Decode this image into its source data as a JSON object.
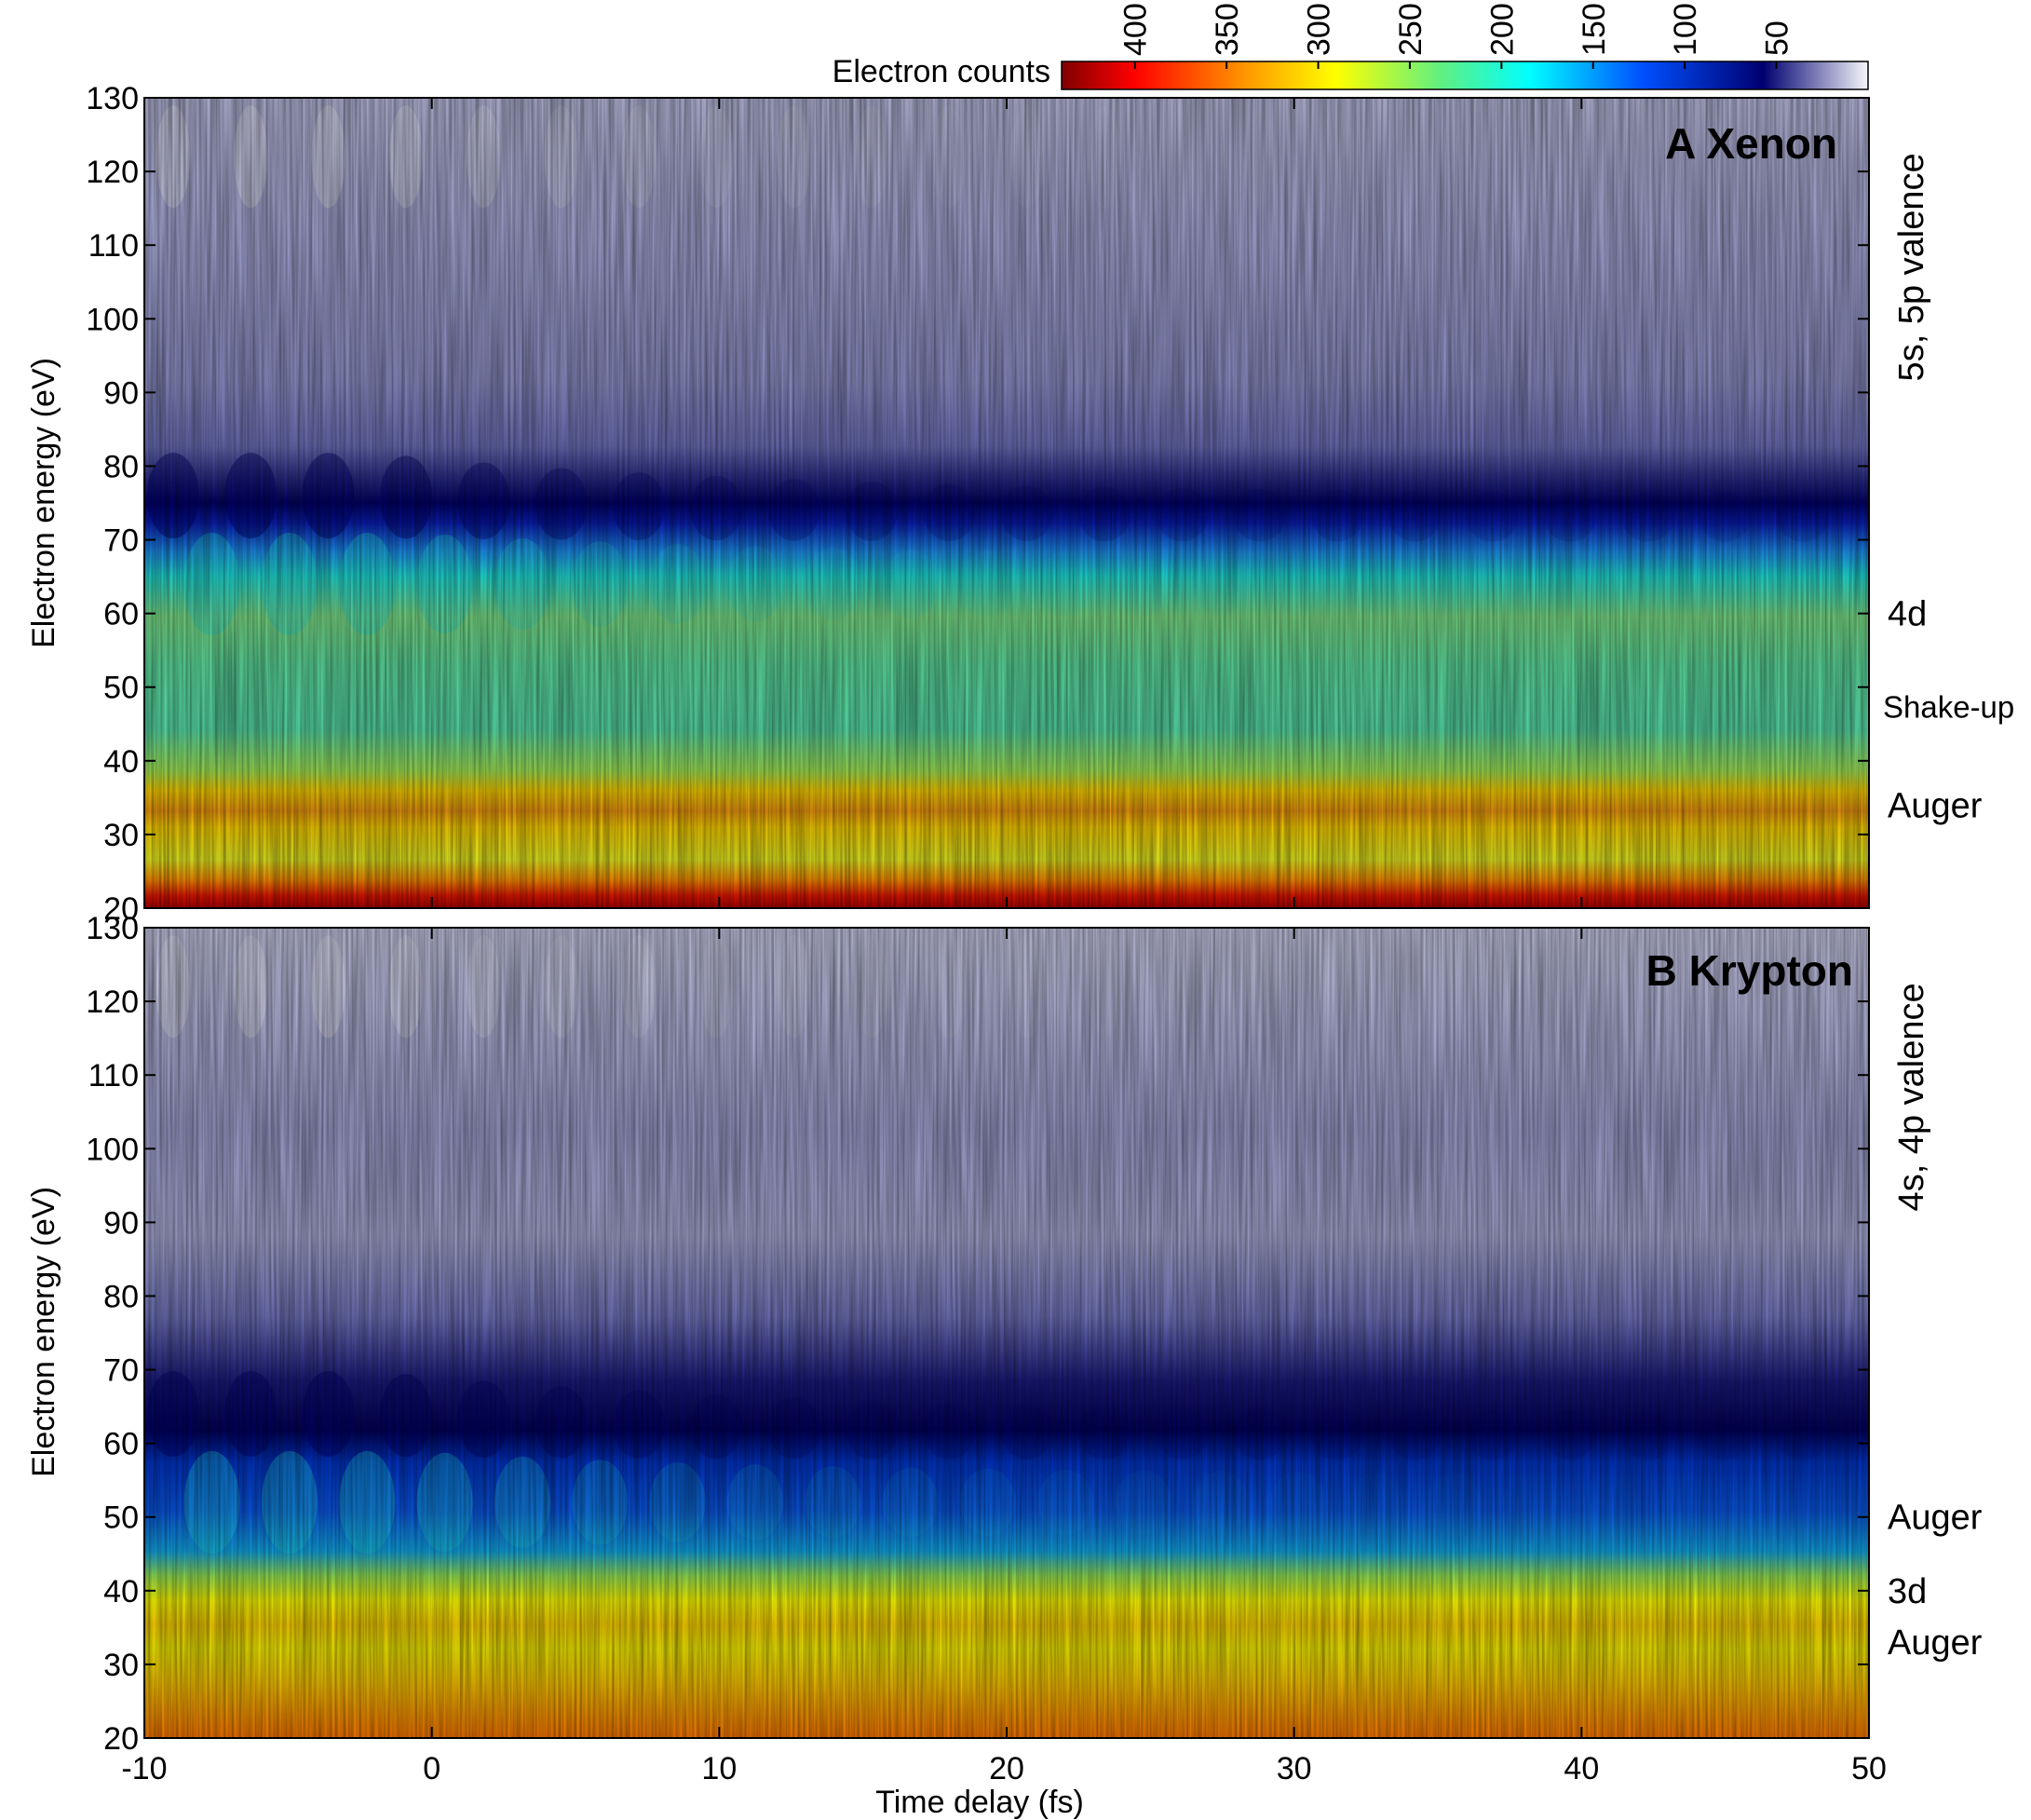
{
  "colorbar": {
    "label": "Electron counts",
    "ticks": [
      "400",
      "350",
      "300",
      "250",
      "200",
      "150",
      "100",
      "50"
    ],
    "tick_values": [
      400,
      350,
      300,
      250,
      200,
      150,
      100,
      50
    ],
    "range": [
      440,
      0
    ],
    "colormap": [
      "#8b0000",
      "#ff0000",
      "#ff8c00",
      "#ffff00",
      "#40e0a0",
      "#00ffff",
      "#0064ff",
      "#000060",
      "#f4f4fa"
    ]
  },
  "chart_data": [
    {
      "type": "heatmap",
      "title": "A Xenon",
      "xlabel": "",
      "ylabel": "Electron energy (eV)",
      "xlim": [
        -10,
        50
      ],
      "ylim": [
        20,
        130
      ],
      "yticks": [
        "130",
        "120",
        "110",
        "100",
        "90",
        "80",
        "70",
        "60",
        "50",
        "40",
        "30",
        "20"
      ],
      "ytick_values": [
        130,
        120,
        110,
        100,
        90,
        80,
        70,
        60,
        50,
        40,
        30,
        20
      ],
      "band_labels": [
        {
          "text": "5s, 5p valence",
          "energy": 107,
          "rotated": true
        },
        {
          "text": "4d",
          "energy": 60,
          "rotated": false
        },
        {
          "text": "Shake-up",
          "energy": 47.5,
          "rotated": false
        },
        {
          "text": "Auger",
          "energy": 34,
          "rotated": false
        }
      ],
      "bands": [
        {
          "name": "valence-dark-edge",
          "energy_center": 72,
          "counts": 45,
          "oscillation_amplitude_eV": 3
        },
        {
          "name": "4d",
          "energy_range": [
            38,
            65
          ],
          "counts": 210
        },
        {
          "name": "Auger",
          "energy_center": 33,
          "counts": 320
        },
        {
          "name": "low-energy edge",
          "energy_center": 22,
          "counts": 420
        }
      ]
    },
    {
      "type": "heatmap",
      "title": "B Krypton",
      "xlabel": "Time delay (fs)",
      "ylabel": "Electron energy (eV)",
      "xlim": [
        -10,
        50
      ],
      "ylim": [
        20,
        130
      ],
      "xticks": [
        "-10",
        "0",
        "10",
        "20",
        "30",
        "40",
        "50"
      ],
      "xtick_values": [
        -10,
        0,
        10,
        20,
        30,
        40,
        50
      ],
      "yticks": [
        "130",
        "120",
        "110",
        "100",
        "90",
        "80",
        "70",
        "60",
        "50",
        "40",
        "30",
        "20"
      ],
      "ytick_values": [
        130,
        120,
        110,
        100,
        90,
        80,
        70,
        60,
        50,
        40,
        30,
        20
      ],
      "band_labels": [
        {
          "text": "4s, 4p valence",
          "energy": 107,
          "rotated": true
        },
        {
          "text": "Auger",
          "energy": 50,
          "rotated": false
        },
        {
          "text": "3d",
          "energy": 40,
          "rotated": false
        },
        {
          "text": "Auger",
          "energy": 33,
          "rotated": false
        }
      ],
      "bands": [
        {
          "name": "valence-dark-edge",
          "energy_center": 60,
          "counts": 45
        },
        {
          "name": "Auger-blue",
          "energy_range": [
            43,
            58
          ],
          "counts": 120,
          "oscillation_amplitude_eV": 3
        },
        {
          "name": "3d",
          "energy_center": 38,
          "counts": 230
        },
        {
          "name": "Auger",
          "energy_center": 32,
          "counts": 290
        },
        {
          "name": "low-energy edge",
          "energy_center": 22,
          "counts": 340
        }
      ]
    }
  ]
}
